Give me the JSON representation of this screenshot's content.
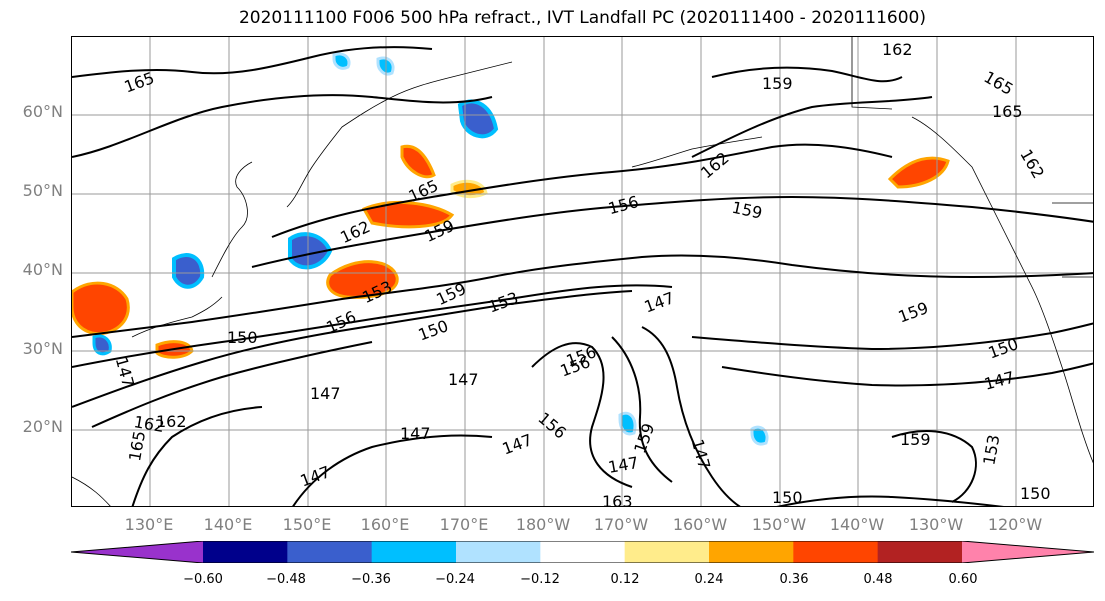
{
  "title": "2020111100 F006 500 hPa refract., IVT Landfall PC (2020111400 - 2020111600)",
  "lat_labels": [
    "60°N",
    "50°N",
    "40°N",
    "30°N",
    "20°N"
  ],
  "lon_labels": [
    "130°E",
    "140°E",
    "150°E",
    "160°E",
    "170°E",
    "180°W",
    "170°W",
    "160°W",
    "150°W",
    "140°W",
    "130°W",
    "120°W"
  ],
  "colorbar": {
    "ticks": [
      "−0.60",
      "−0.48",
      "−0.36",
      "−0.24",
      "−0.12",
      "0.12",
      "0.24",
      "0.36",
      "0.48",
      "0.60"
    ],
    "colors": [
      "#9932cc",
      "#00008b",
      "#3a5fcd",
      "#00bfff",
      "#b0e2ff",
      "#ffffff",
      "#ffec8b",
      "#ffa500",
      "#ff4500",
      "#b22222",
      "#ff82ab"
    ]
  },
  "contour_labels": [
    "165",
    "162",
    "165",
    "159",
    "165",
    "162",
    "159",
    "162",
    "156",
    "159",
    "165",
    "162",
    "159",
    "153",
    "156",
    "159",
    "153",
    "150",
    "147",
    "150",
    "156",
    "147",
    "150",
    "147",
    "147",
    "147",
    "162",
    "165",
    "147",
    "147",
    "156",
    "147",
    "147",
    "159",
    "147",
    "150",
    "153",
    "150",
    "159",
    "156",
    "162",
    "163"
  ]
}
